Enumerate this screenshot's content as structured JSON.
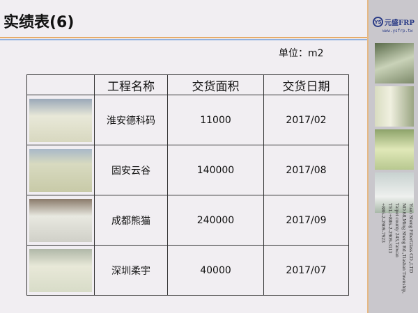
{
  "title": "实绩表(6)",
  "unit": "单位：m2",
  "logo": {
    "brand": "元盛FRP",
    "url": "www.ysfrp.tw",
    "mark": "YS"
  },
  "address": [
    "Yuan Sheng FiberGlass CO.,LTD",
    "NO.68,Ming Sheng Rd.,Tiashan Township,",
    "Taipei county 243,Taiwan",
    "TEL:+886-2-2909-3113",
    "+886-2-2909-7923"
  ],
  "table": {
    "headers": [
      "",
      "工程名称",
      "交货面积",
      "交货日期"
    ],
    "rows": [
      [
        "淮安德科码",
        "11000",
        "2017/02"
      ],
      [
        "固安云谷",
        "140000",
        "2017/08"
      ],
      [
        "成都熊猫",
        "240000",
        "2017/09"
      ],
      [
        "深圳柔宇",
        "40000",
        "2017/07"
      ]
    ]
  }
}
